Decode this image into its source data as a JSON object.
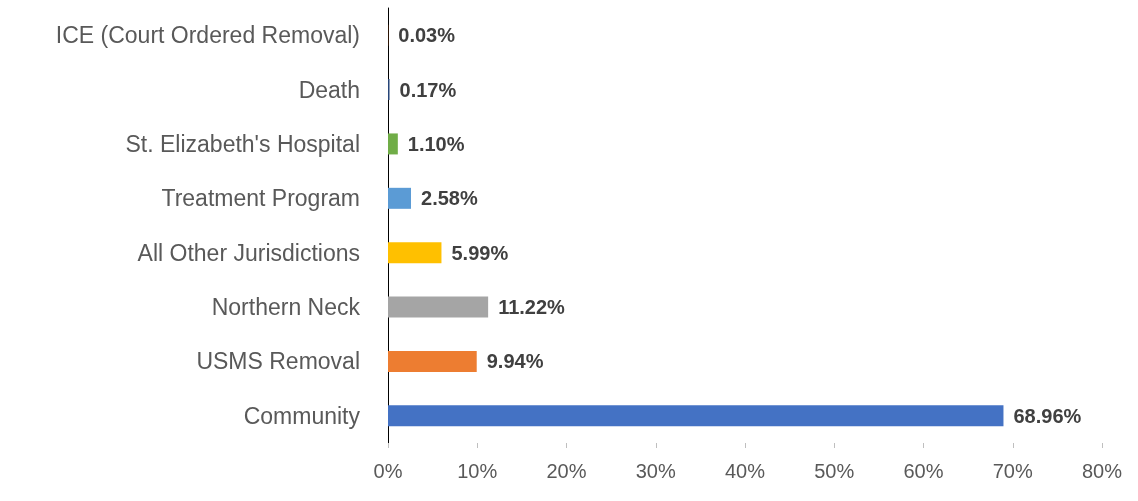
{
  "chart_data": {
    "type": "bar",
    "orientation": "horizontal",
    "categories": [
      "ICE (Court Ordered Removal)",
      "Death",
      "St. Elizabeth's Hospital",
      "Treatment Program",
      "All Other Jurisdictions",
      "Northern Neck",
      "USMS Removal",
      "Community"
    ],
    "values": [
      0.03,
      0.17,
      1.1,
      2.58,
      5.99,
      11.22,
      9.94,
      68.96
    ],
    "colors": [
      "#9e480e",
      "#264478",
      "#70ad47",
      "#5b9bd5",
      "#ffc000",
      "#a5a5a5",
      "#ed7d31",
      "#4472c4"
    ],
    "value_labels": [
      "0.03%",
      "0.17%",
      "1.10%",
      "2.58%",
      "5.99%",
      "11.22%",
      "9.94%",
      "68.96%"
    ],
    "xlim": [
      0,
      80
    ],
    "xticks": [
      {
        "value": 0,
        "label": "0%"
      },
      {
        "value": 10,
        "label": "10%"
      },
      {
        "value": 20,
        "label": "20%"
      },
      {
        "value": 30,
        "label": "30%"
      },
      {
        "value": 40,
        "label": "40%"
      },
      {
        "value": 50,
        "label": "50%"
      },
      {
        "value": 60,
        "label": "60%"
      },
      {
        "value": 70,
        "label": "70%"
      },
      {
        "value": 80,
        "label": "80%"
      }
    ],
    "grid": false
  }
}
